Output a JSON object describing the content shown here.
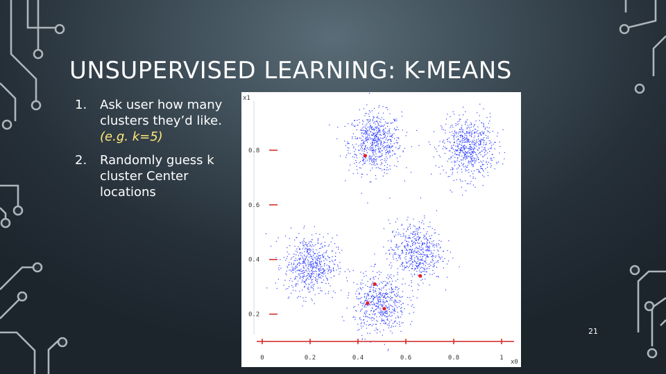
{
  "slide": {
    "title": "UNSUPERVISED LEARNING: K-MEANS",
    "page_number": "21",
    "accent_color": "#ffe97a",
    "background_color": "#3e4d57"
  },
  "bullets": [
    {
      "number": "1.",
      "text": "Ask user how many clusters they’d like.",
      "example": "(e.g. k=5)"
    },
    {
      "number": "2.",
      "text": "Randomly guess k cluster Center locations"
    }
  ],
  "chart_data": {
    "type": "scatter",
    "xlabel": "x0",
    "ylabel": "x1",
    "xlim": [
      0,
      1
    ],
    "ylim": [
      0.1,
      1
    ],
    "x_ticks": [
      "0",
      "0.2",
      "0.4",
      "0.6",
      "0.8",
      "1"
    ],
    "y_ticks": [
      "0.2",
      "0.4",
      "0.6",
      "0.8"
    ],
    "grid": false,
    "point_color": "#2c3cff",
    "center_color": "#e0202a",
    "clusters": [
      {
        "center": [
          0.47,
          0.83
        ],
        "n": 650
      },
      {
        "center": [
          0.86,
          0.81
        ],
        "n": 650
      },
      {
        "center": [
          0.2,
          0.38
        ],
        "n": 600
      },
      {
        "center": [
          0.64,
          0.43
        ],
        "n": 550
      },
      {
        "center": [
          0.49,
          0.24
        ],
        "n": 550
      }
    ],
    "guessed_centers": [
      {
        "x": 0.43,
        "y": 0.78
      },
      {
        "x": 0.47,
        "y": 0.31
      },
      {
        "x": 0.44,
        "y": 0.24
      },
      {
        "x": 0.51,
        "y": 0.22
      },
      {
        "x": 0.66,
        "y": 0.34
      }
    ]
  }
}
